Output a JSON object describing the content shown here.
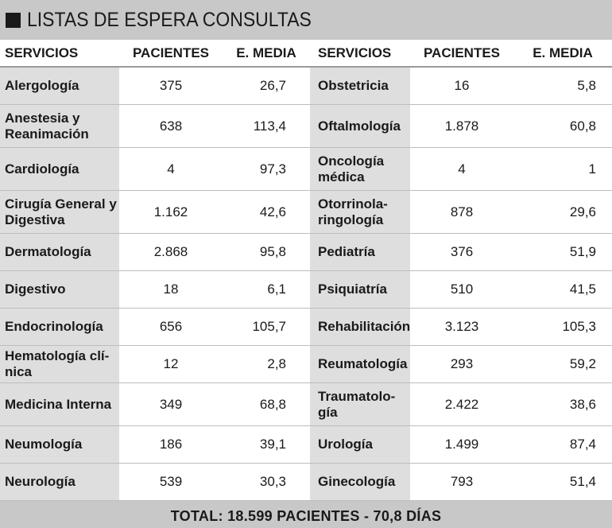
{
  "title": "LISTAS DE ESPERA CONSULTAS",
  "headers": {
    "servicios": "SERVICIOS",
    "pacientes": "PACIENTES",
    "media": "E. MEDIA"
  },
  "left": [
    {
      "servicio": "Alergología",
      "pacientes": "375",
      "media": "26,7"
    },
    {
      "servicio": "Anestesia y Reanimación",
      "pacientes": "638",
      "media": "113,4"
    },
    {
      "servicio": "Cardiología",
      "pacientes": "4",
      "media": "97,3"
    },
    {
      "servicio": "Cirugía General y Digestiva",
      "pacientes": "1.162",
      "media": "42,6"
    },
    {
      "servicio": "Dermatología",
      "pacientes": "2.868",
      "media": "95,8"
    },
    {
      "servicio": "Digestivo",
      "pacientes": "18",
      "media": "6,1"
    },
    {
      "servicio": "Endocrinología",
      "pacientes": "656",
      "media": "105,7"
    },
    {
      "servicio": "Hematología clí-nica",
      "pacientes": "12",
      "media": "2,8"
    },
    {
      "servicio": "Medicina Interna",
      "pacientes": "349",
      "media": "68,8"
    },
    {
      "servicio": "Neumología",
      "pacientes": "186",
      "media": "39,1"
    },
    {
      "servicio": "Neurología",
      "pacientes": "539",
      "media": "30,3"
    }
  ],
  "right": [
    {
      "servicio": "Obstetricia",
      "pacientes": "16",
      "media": "5,8"
    },
    {
      "servicio": "Oftalmología",
      "pacientes": "1.878",
      "media": "60,8"
    },
    {
      "servicio": "Oncología médica",
      "pacientes": "4",
      "media": "1"
    },
    {
      "servicio": "Otorrinola-ringología",
      "pacientes": "878",
      "media": "29,6"
    },
    {
      "servicio": "Pediatría",
      "pacientes": "376",
      "media": "51,9"
    },
    {
      "servicio": "Psiquiatría",
      "pacientes": "510",
      "media": "41,5"
    },
    {
      "servicio": "Rehabilitación",
      "pacientes": "3.123",
      "media": "105,3"
    },
    {
      "servicio": "Reumatología",
      "pacientes": "293",
      "media": "59,2"
    },
    {
      "servicio": "Traumatolo-gía",
      "pacientes": "2.422",
      "media": "38,6"
    },
    {
      "servicio": "Urología",
      "pacientes": "1.499",
      "media": "87,4"
    },
    {
      "servicio": "Ginecología",
      "pacientes": "793",
      "media": "51,4"
    }
  ],
  "total": "TOTAL: 18.599 PACIENTES - 70,8 DÍAS"
}
